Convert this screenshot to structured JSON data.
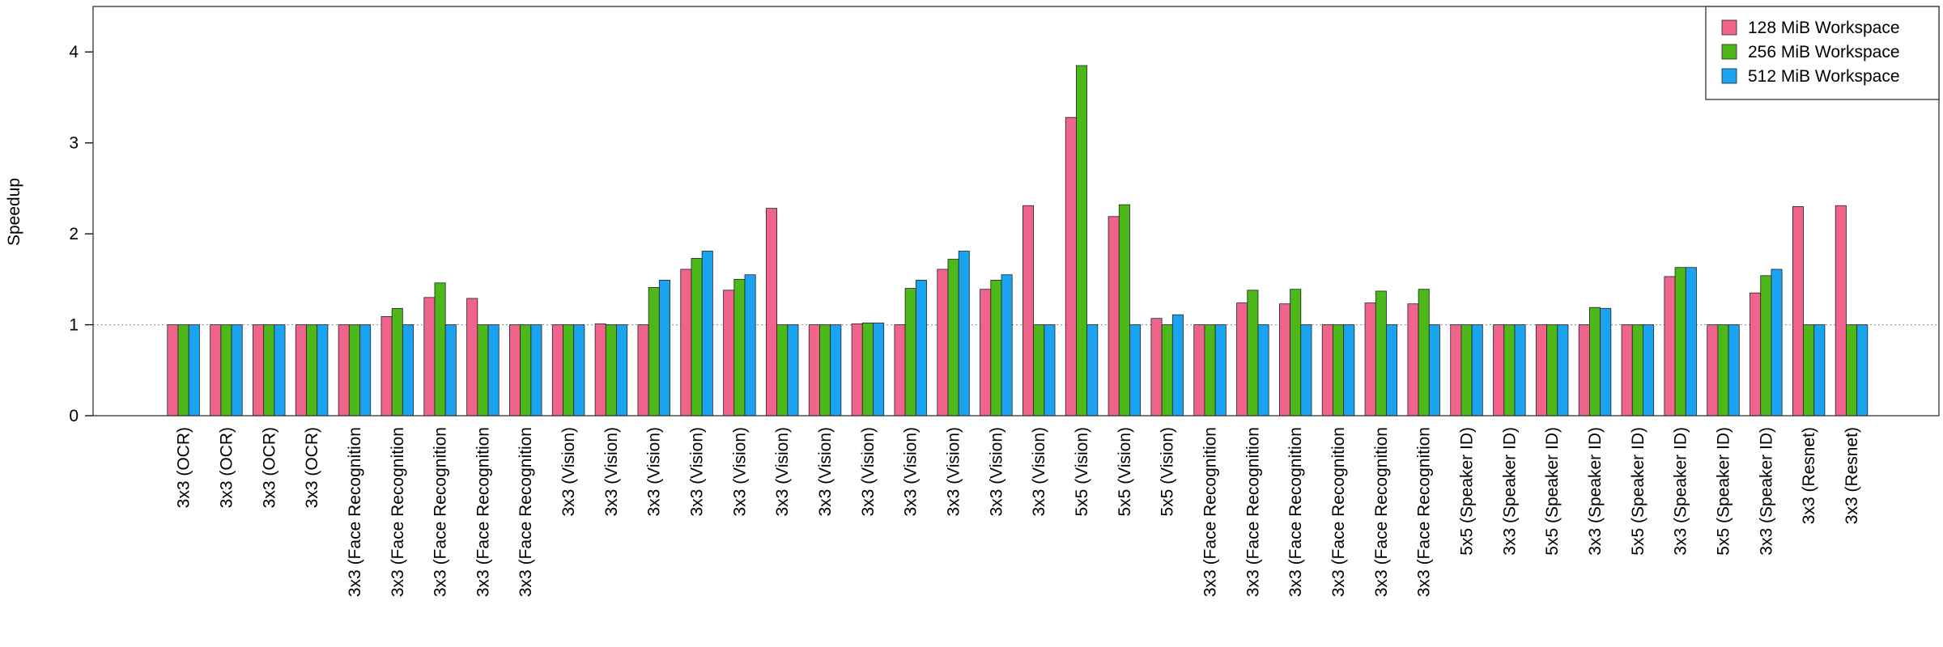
{
  "chart_data": {
    "type": "bar",
    "ylabel": "Speedup",
    "categories": [
      "3x3 (OCR)",
      "3x3 (OCR)",
      "3x3 (OCR)",
      "3x3 (OCR)",
      "3x3 (Face Recognition",
      "3x3 (Face Recognition",
      "3x3 (Face Recognition",
      "3x3 (Face Recognition",
      "3x3 (Face Recognition",
      "3x3 (Vision)",
      "3x3 (Vision)",
      "3x3 (Vision)",
      "3x3 (Vision)",
      "3x3 (Vision)",
      "3x3 (Vision)",
      "3x3 (Vision)",
      "3x3 (Vision)",
      "3x3 (Vision)",
      "3x3 (Vision)",
      "3x3 (Vision)",
      "3x3 (Vision)",
      "5x5 (Vision)",
      "5x5 (Vision)",
      "5x5 (Vision)",
      "3x3 (Face Recognition",
      "3x3 (Face Recognition",
      "3x3 (Face Recognition",
      "3x3 (Face Recognition",
      "3x3 (Face Recognition",
      "3x3 (Face Recognition",
      "5x5 (Speaker ID)",
      "3x3 (Speaker ID)",
      "5x5 (Speaker ID)",
      "3x3 (Speaker ID)",
      "5x5 (Speaker ID)",
      "3x3 (Speaker ID)",
      "5x5 (Speaker ID)",
      "3x3 (Speaker ID)",
      "3x3 (Resnet)",
      "3x3 (Resnet)"
    ],
    "series": [
      {
        "name": "128 MiB Workspace",
        "color": "#f0648c",
        "values": [
          1,
          1,
          1,
          1,
          1,
          1.09,
          1.3,
          1.29,
          1,
          1,
          1.01,
          1,
          1.61,
          1.38,
          2.28,
          1,
          1.01,
          1,
          1.61,
          1.39,
          2.31,
          3.28,
          2.19,
          1.07,
          1,
          1.24,
          1.23,
          1,
          1.24,
          1.23,
          1,
          1,
          1,
          1,
          1,
          1.53,
          1,
          1.35,
          2.3,
          2.31
        ]
      },
      {
        "name": "256 MiB Workspace",
        "color": "#4cb81a",
        "values": [
          1,
          1,
          1,
          1,
          1,
          1.18,
          1.46,
          1,
          1,
          1,
          1,
          1.41,
          1.73,
          1.5,
          1,
          1,
          1.02,
          1.4,
          1.72,
          1.49,
          1,
          3.85,
          2.32,
          1,
          1,
          1.38,
          1.39,
          1,
          1.37,
          1.39,
          1,
          1,
          1,
          1.19,
          1,
          1.63,
          1,
          1.54,
          1,
          1
        ]
      },
      {
        "name": "512 MiB Workspace",
        "color": "#1aa3f0",
        "values": [
          1,
          1,
          1,
          1,
          1,
          1,
          1,
          1,
          1,
          1,
          1,
          1.49,
          1.81,
          1.55,
          1,
          1,
          1.02,
          1.49,
          1.81,
          1.55,
          1,
          1,
          1,
          1.11,
          1,
          1,
          1,
          1,
          1,
          1,
          1,
          1,
          1,
          1.18,
          1,
          1.63,
          1,
          1.61,
          1,
          1
        ]
      }
    ],
    "ylim": [
      0,
      4.5
    ],
    "yticks": [
      0,
      1,
      2,
      3,
      4
    ],
    "refline": 1,
    "legend": "top-right"
  }
}
